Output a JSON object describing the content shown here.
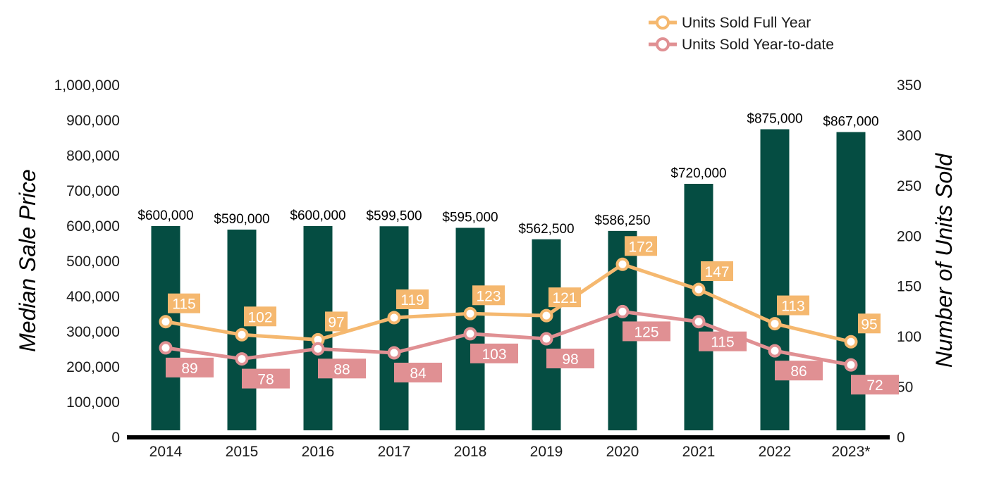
{
  "chart_data": {
    "type": "bar",
    "categories": [
      "2014",
      "2015",
      "2016",
      "2017",
      "2018",
      "2019",
      "2020",
      "2021",
      "2022",
      "2023*"
    ],
    "bars": {
      "values": [
        600000,
        590000,
        600000,
        599500,
        595000,
        562500,
        586250,
        720000,
        875000,
        867000
      ],
      "labels": [
        "$600,000",
        "$590,000",
        "$600,000",
        "$599,500",
        "$595,000",
        "$562,500",
        "$586,250",
        "$720,000",
        "$875,000",
        "$867,000"
      ],
      "color": "#054d42"
    },
    "series": [
      {
        "name": "Units Sold Full Year",
        "type": "line",
        "axis": "right",
        "color": "#f5b86f",
        "values": [
          115,
          102,
          97,
          119,
          123,
          121,
          172,
          147,
          113,
          95
        ]
      },
      {
        "name": "Units Sold Year-to-date",
        "type": "line",
        "axis": "right",
        "color": "#e09093",
        "values": [
          89,
          78,
          88,
          84,
          103,
          98,
          125,
          115,
          86,
          72
        ]
      }
    ],
    "ylabel_left": "Median Sale Price",
    "ylabel_right": "Number of Units Sold",
    "ylim_left": [
      0,
      1000000
    ],
    "ylim_right": [
      0,
      350
    ],
    "yticks_left": [
      "0",
      "100,000",
      "200,000",
      "300,000",
      "400,000",
      "500,000",
      "600,000",
      "700,000",
      "800,000",
      "900,000",
      "1,000,000"
    ],
    "yticks_right": [
      "0",
      "50",
      "100",
      "150",
      "200",
      "250",
      "300",
      "350"
    ],
    "grid": false,
    "legend_position": "top-right"
  }
}
